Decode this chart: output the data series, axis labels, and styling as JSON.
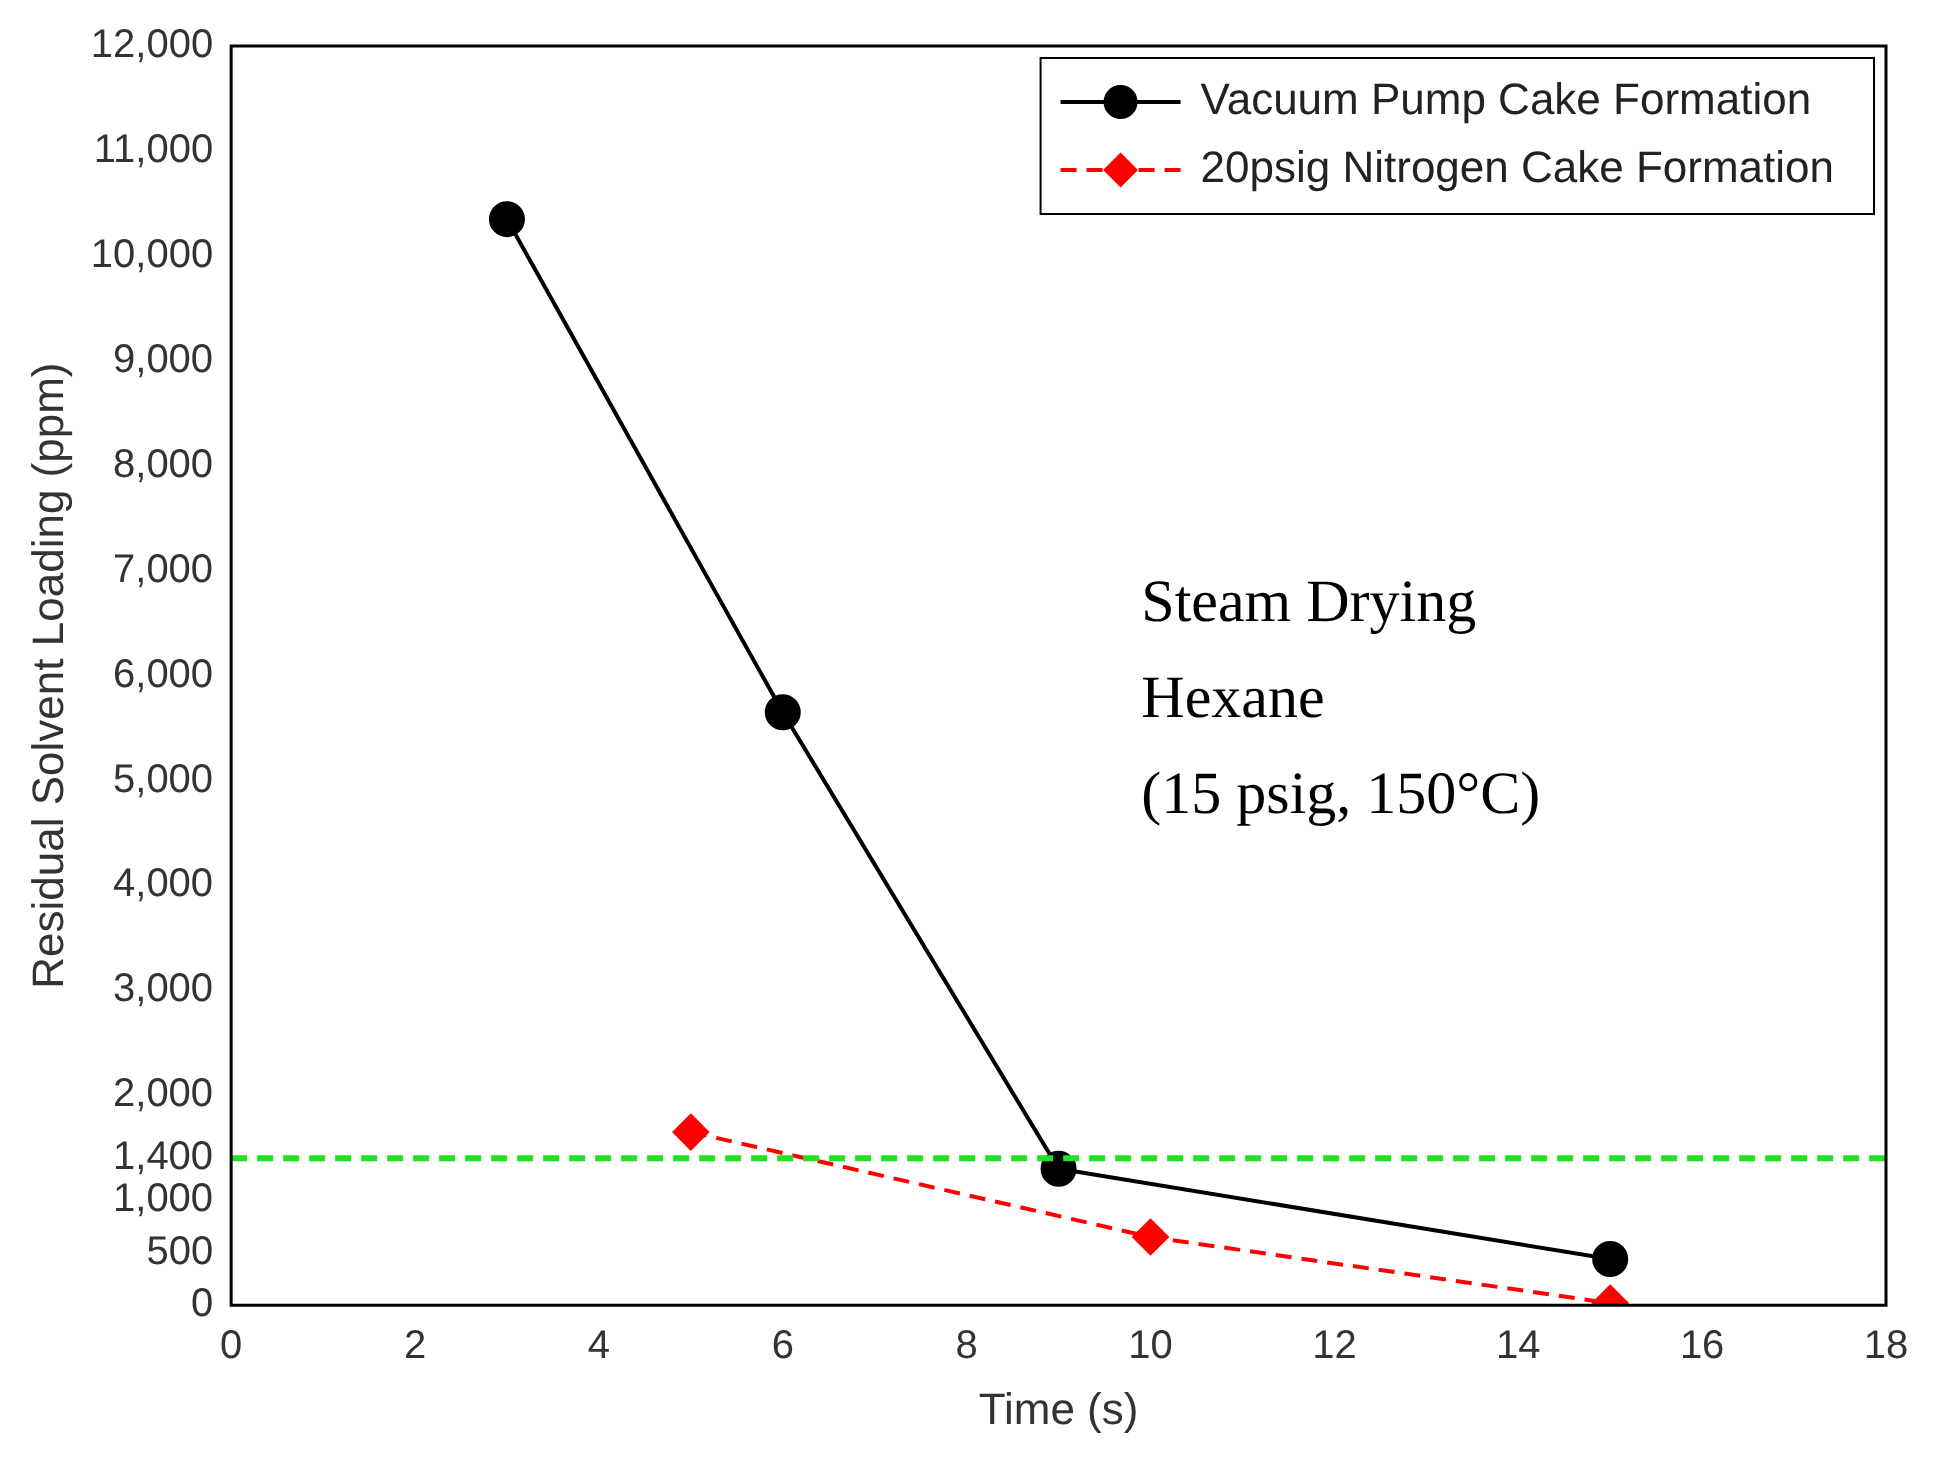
{
  "chart_data": {
    "type": "line",
    "xlabel": "Time (s)",
    "ylabel": "Residual Solvent Loading (ppm)",
    "xlim": [
      0,
      18
    ],
    "xticks": [
      0,
      2,
      4,
      6,
      8,
      10,
      12,
      14,
      16,
      18
    ],
    "ylim": [
      0,
      12000
    ],
    "yticks": [
      {
        "value": 0,
        "label": "0"
      },
      {
        "value": 500,
        "label": "500"
      },
      {
        "value": 1000,
        "label": "1,000"
      },
      {
        "value": 1400,
        "label": "1,400"
      },
      {
        "value": 2000,
        "label": "2,000"
      },
      {
        "value": 3000,
        "label": "3,000"
      },
      {
        "value": 4000,
        "label": "4,000"
      },
      {
        "value": 5000,
        "label": "5,000"
      },
      {
        "value": 6000,
        "label": "6,000"
      },
      {
        "value": 7000,
        "label": "7,000"
      },
      {
        "value": 8000,
        "label": "8,000"
      },
      {
        "value": 9000,
        "label": "9,000"
      },
      {
        "value": 10000,
        "label": "10,000"
      },
      {
        "value": 11000,
        "label": "11,000"
      },
      {
        "value": 12000,
        "label": "12,000"
      }
    ],
    "series": [
      {
        "name": "Vacuum Pump Cake Formation",
        "color": "#000000",
        "x": [
          3,
          6,
          9,
          15
        ],
        "values": [
          10350,
          5650,
          1300,
          440
        ],
        "marker": "circle",
        "line_style": "solid"
      },
      {
        "name": "20psig Nitrogen Cake Formation",
        "color": "#ff0000",
        "x": [
          5,
          10,
          15
        ],
        "values": [
          1650,
          650,
          20
        ],
        "marker": "diamond",
        "line_style": "dashed"
      }
    ],
    "ref_lines": [
      {
        "axis": "y",
        "value": 1400,
        "color": "#22e022",
        "line_style": "dashed"
      }
    ],
    "annotations": [
      "Steam Drying\nHexane\n(15 psig, 150°C)"
    ],
    "legend": "top right",
    "grid": false
  }
}
